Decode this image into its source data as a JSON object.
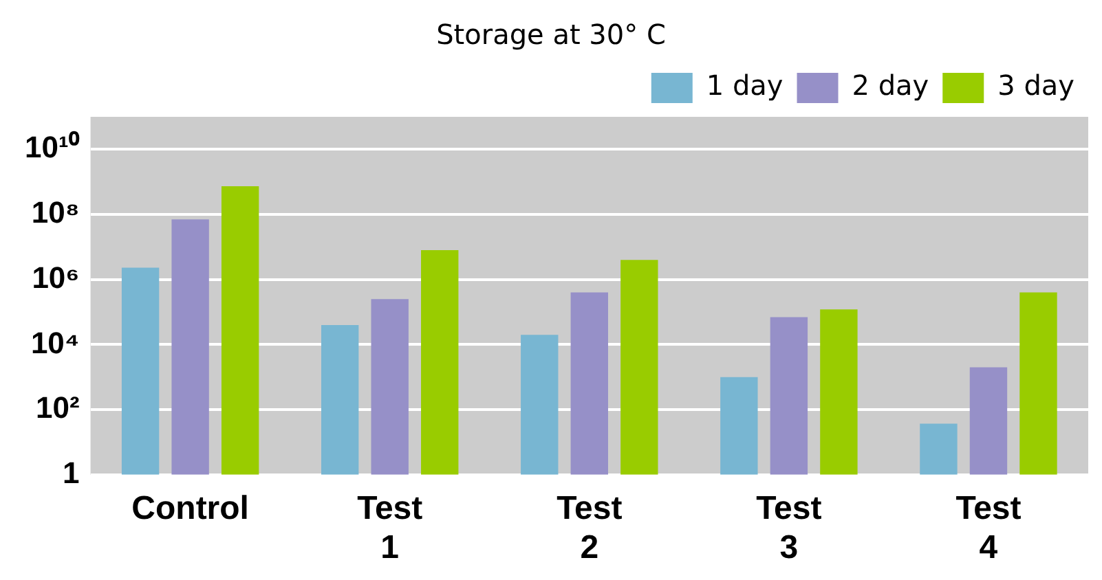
{
  "chart_data": {
    "type": "bar",
    "title": "Storage at 30° C",
    "categories": [
      "Control",
      "Test 1",
      "Test 2",
      "Test 3",
      "Test 4"
    ],
    "series": [
      {
        "name": "1 day",
        "color": "#78b6d2",
        "values": [
          2300000,
          40000,
          20000,
          1000,
          37
        ]
      },
      {
        "name": "2 day",
        "color": "#9690c8",
        "values": [
          70000000,
          250000,
          400000,
          70000,
          2000
        ]
      },
      {
        "name": "3 day",
        "color": "#99cc00",
        "values": [
          740000000,
          8000000,
          4000000,
          120000,
          400000
        ]
      }
    ],
    "log": true,
    "ylim": [
      1,
      100000000000
    ],
    "yticks": [
      {
        "value": 1,
        "label": "1"
      },
      {
        "value": 100,
        "label": "10²"
      },
      {
        "value": 10000,
        "label": "10⁴"
      },
      {
        "value": 1000000,
        "label": "10⁶"
      },
      {
        "value": 100000000,
        "label": "10⁸"
      },
      {
        "value": 10000000000,
        "label": "10¹⁰"
      }
    ],
    "grid": "y",
    "legend": "top right"
  }
}
